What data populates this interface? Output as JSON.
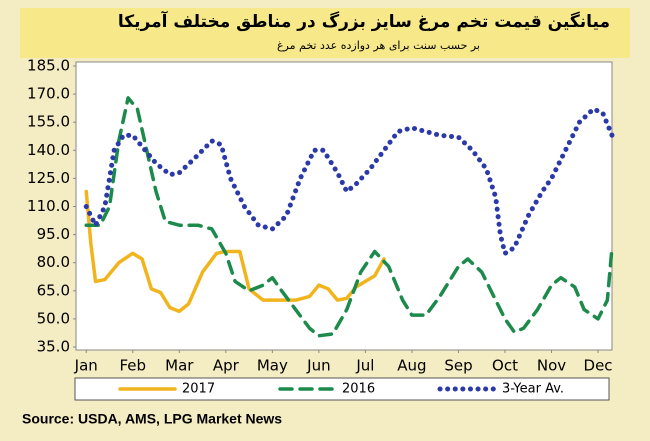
{
  "chart_data": {
    "type": "line",
    "title": "میانگین قیمت تخم مرغ سایز بزرگ در مناطق مختلف آمریکا",
    "subtitle": "بر حسب سنت برای هر دوازده عدد تخم مرغ",
    "source": "Source: USDA, AMS, LPG  Market News",
    "xlim": [
      0.78,
      12.3
    ],
    "xticks": [
      {
        "value": 1,
        "label": "Jan"
      },
      {
        "value": 2,
        "label": "Feb"
      },
      {
        "value": 3,
        "label": "Mar"
      },
      {
        "value": 4,
        "label": "Apr"
      },
      {
        "value": 5,
        "label": "May"
      },
      {
        "value": 6,
        "label": "Jun"
      },
      {
        "value": 7,
        "label": "Jul"
      },
      {
        "value": 8,
        "label": "Aug"
      },
      {
        "value": 9,
        "label": "Sep"
      },
      {
        "value": 10,
        "label": "Oct"
      },
      {
        "value": 11,
        "label": "Nov"
      },
      {
        "value": 12,
        "label": "Dec"
      }
    ],
    "ylim": [
      35,
      185
    ],
    "yticks": [
      {
        "value": 35,
        "label": "35.0"
      },
      {
        "value": 50,
        "label": "50.0"
      },
      {
        "value": 65,
        "label": "65.0"
      },
      {
        "value": 80,
        "label": "80.0"
      },
      {
        "value": 95,
        "label": "95.0"
      },
      {
        "value": 110,
        "label": "110.0"
      },
      {
        "value": 125,
        "label": "125.0"
      },
      {
        "value": 140,
        "label": "140.0"
      },
      {
        "value": 155,
        "label": "155.0"
      },
      {
        "value": 170,
        "label": "170.0"
      },
      {
        "value": 185,
        "label": "185.0"
      }
    ],
    "series": [
      {
        "name": "2017",
        "color": "#f2b41c",
        "style": "solid",
        "x": [
          1.0,
          1.1,
          1.2,
          1.4,
          1.7,
          2.0,
          2.2,
          2.4,
          2.6,
          2.8,
          3.0,
          3.2,
          3.5,
          3.8,
          4.0,
          4.3,
          4.5,
          4.8,
          5.0,
          5.5,
          5.8,
          6.0,
          6.2,
          6.4,
          6.6,
          6.8,
          7.0,
          7.2,
          7.4
        ],
        "values": [
          118,
          90,
          70,
          71,
          80,
          85,
          82,
          66,
          64,
          56,
          54,
          58,
          75,
          85,
          86,
          86,
          66,
          60,
          60,
          60,
          62,
          68,
          66,
          60,
          61,
          67,
          70,
          73,
          82
        ]
      },
      {
        "name": "2016",
        "color": "#1c8a4a",
        "style": "dashed",
        "x": [
          1.0,
          1.3,
          1.5,
          1.7,
          1.9,
          2.1,
          2.3,
          2.5,
          2.7,
          3.0,
          3.4,
          3.7,
          4.0,
          4.2,
          4.5,
          4.8,
          5.0,
          5.2,
          5.5,
          5.8,
          6.0,
          6.3,
          6.6,
          6.9,
          7.2,
          7.5,
          7.8,
          8.0,
          8.3,
          8.6,
          9.0,
          9.2,
          9.5,
          9.8,
          10.0,
          10.2,
          10.4,
          10.7,
          11.0,
          11.2,
          11.5,
          11.7,
          12.0,
          12.2,
          12.3
        ],
        "values": [
          100,
          100,
          110,
          145,
          168,
          162,
          140,
          118,
          102,
          100,
          100,
          98,
          85,
          70,
          65,
          68,
          72,
          65,
          55,
          45,
          41,
          42,
          55,
          75,
          86,
          78,
          60,
          52,
          52,
          62,
          78,
          82,
          75,
          60,
          50,
          43,
          45,
          55,
          68,
          72,
          67,
          55,
          50,
          60,
          88
        ]
      },
      {
        "name": "3-Year Av.",
        "color": "#2b3aa8",
        "style": "dotted",
        "x": [
          1.0,
          1.2,
          1.4,
          1.6,
          1.8,
          2.0,
          2.2,
          2.5,
          2.8,
          3.0,
          3.3,
          3.7,
          3.9,
          4.1,
          4.4,
          4.7,
          5.0,
          5.3,
          5.6,
          5.9,
          6.1,
          6.4,
          6.6,
          6.8,
          7.1,
          7.4,
          7.7,
          8.0,
          8.3,
          8.6,
          9.0,
          9.3,
          9.6,
          9.8,
          9.9,
          10.0,
          10.2,
          10.5,
          10.8,
          11.0,
          11.3,
          11.6,
          11.9,
          12.1,
          12.3
        ],
        "values": [
          110,
          100,
          110,
          140,
          148,
          148,
          142,
          133,
          127,
          128,
          135,
          145,
          143,
          125,
          110,
          100,
          98,
          105,
          125,
          140,
          140,
          128,
          118,
          122,
          130,
          140,
          150,
          152,
          150,
          148,
          147,
          140,
          130,
          115,
          95,
          85,
          88,
          105,
          118,
          125,
          140,
          155,
          162,
          160,
          148
        ]
      }
    ]
  }
}
